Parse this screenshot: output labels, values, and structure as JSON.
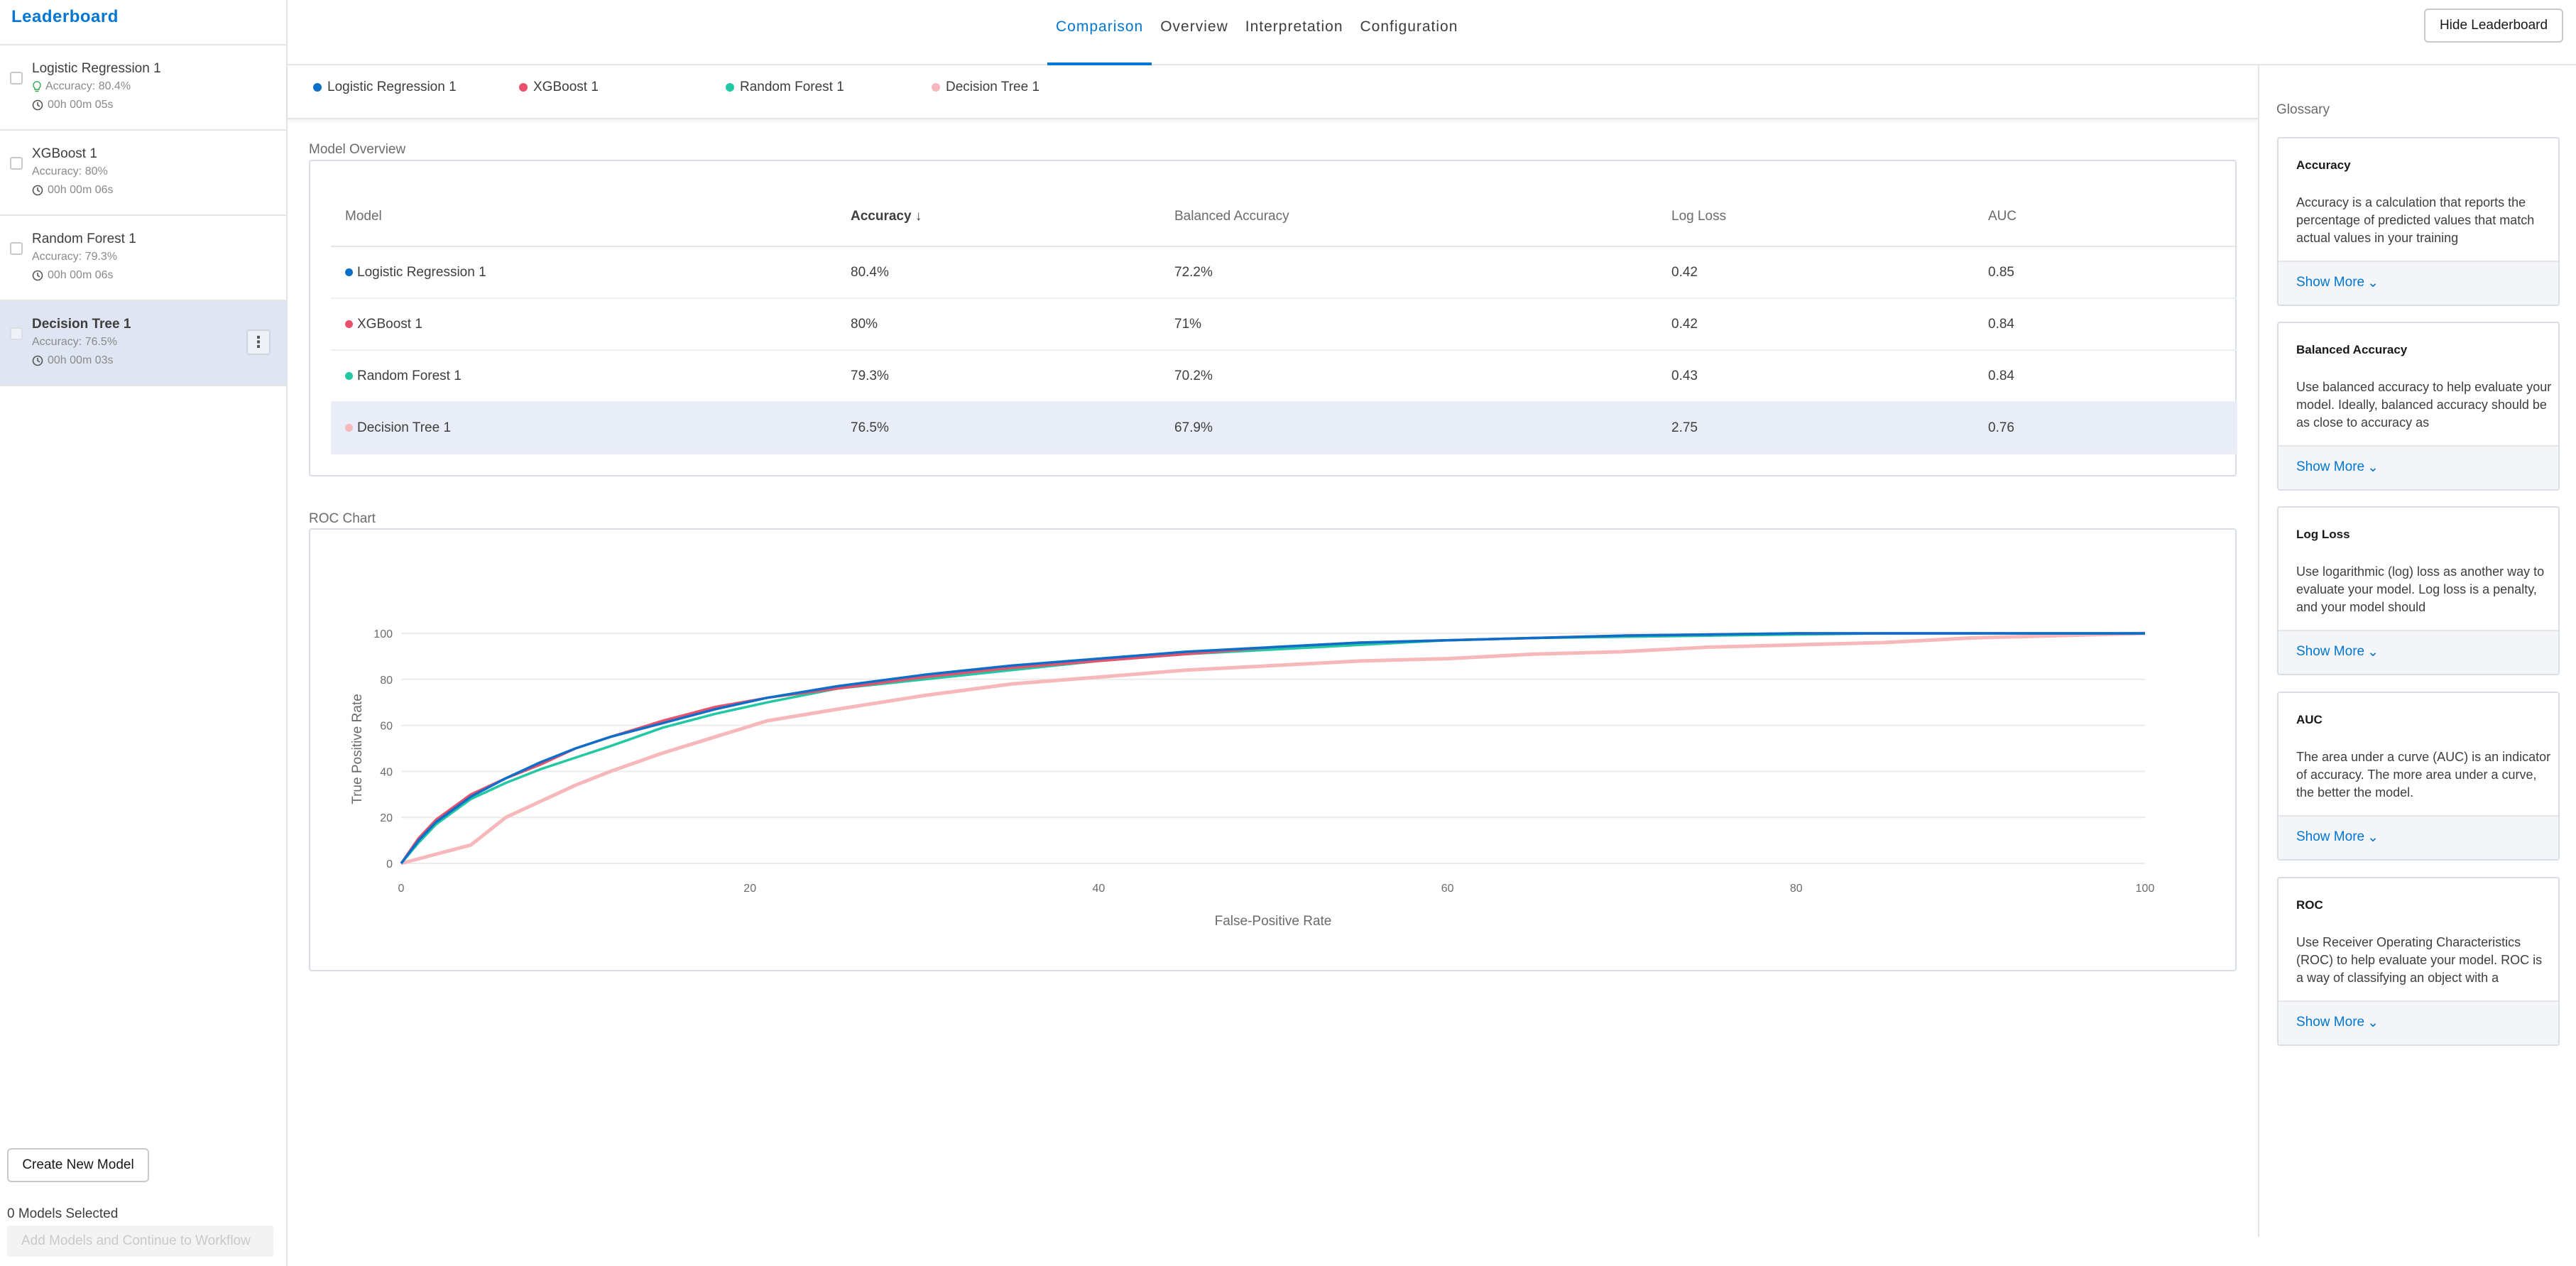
{
  "sidebar": {
    "title": "Leaderboard",
    "models": [
      {
        "name": "Logistic Regression 1",
        "accuracy": "Accuracy: 80.4%",
        "time": "00h 00m 05s",
        "badge": true
      },
      {
        "name": "XGBoost 1",
        "accuracy": "Accuracy: 80%",
        "time": "00h 00m 06s"
      },
      {
        "name": "Random Forest 1",
        "accuracy": "Accuracy: 79.3%",
        "time": "00h 00m 06s"
      },
      {
        "name": "Decision Tree 1",
        "accuracy": "Accuracy: 76.5%",
        "time": "00h 00m 03s",
        "selected": true
      }
    ],
    "create_button": "Create New Model",
    "models_selected": "0 Models Selected",
    "add_button": "Add Models and Continue to Workflow"
  },
  "nav": {
    "tabs": [
      "Comparison",
      "Overview",
      "Interpretation",
      "Configuration"
    ],
    "active_tab": "Comparison",
    "hide_button": "Hide Leaderboard"
  },
  "legend": [
    {
      "name": "Logistic Regression 1",
      "color": "#0b6fc9"
    },
    {
      "name": "XGBoost 1",
      "color": "#e8506b"
    },
    {
      "name": "Random Forest 1",
      "color": "#22c7a4"
    },
    {
      "name": "Decision Tree 1",
      "color": "#f7b8bc"
    }
  ],
  "overview": {
    "title": "Model Overview",
    "columns": [
      "Model",
      "Accuracy",
      "Balanced Accuracy",
      "Log Loss",
      "AUC"
    ],
    "sorted_column": "Accuracy",
    "rows": [
      {
        "model": "Logistic Regression 1",
        "accuracy": "80.4%",
        "balanced": "72.2%",
        "logloss": "0.42",
        "auc": "0.85"
      },
      {
        "model": "XGBoost 1",
        "accuracy": "80%",
        "balanced": "71%",
        "logloss": "0.42",
        "auc": "0.84"
      },
      {
        "model": "Random Forest 1",
        "accuracy": "79.3%",
        "balanced": "70.2%",
        "logloss": "0.43",
        "auc": "0.84"
      },
      {
        "model": "Decision Tree 1",
        "accuracy": "76.5%",
        "balanced": "67.9%",
        "logloss": "2.75",
        "auc": "0.76",
        "highlighted": true
      }
    ]
  },
  "roc_title": "ROC Chart",
  "chart_data": {
    "type": "line",
    "xlabel": "False-Positive Rate",
    "ylabel": "True Positive Rate",
    "xlim": [
      0,
      100
    ],
    "ylim": [
      0,
      100
    ],
    "xticks": [
      0,
      20,
      40,
      60,
      80,
      100
    ],
    "yticks": [
      0,
      20,
      40,
      60,
      80,
      100
    ],
    "grid": true,
    "x": [
      0,
      1,
      2,
      4,
      6,
      8,
      10,
      12,
      15,
      18,
      21,
      25,
      30,
      35,
      40,
      45,
      50,
      55,
      60,
      65,
      70,
      75,
      80,
      85,
      90,
      95,
      100
    ],
    "series": [
      {
        "name": "Logistic Regression 1",
        "color": "#0b6fc9",
        "values": [
          0,
          10,
          18,
          29,
          37,
          44,
          50,
          55,
          61,
          67,
          72,
          77,
          82,
          86,
          89,
          92,
          94,
          96,
          97,
          98,
          99,
          99.5,
          100,
          100,
          100,
          100,
          100
        ]
      },
      {
        "name": "XGBoost 1",
        "color": "#e8506b",
        "values": [
          0,
          11,
          19,
          30,
          37,
          43,
          50,
          55,
          62,
          68,
          72,
          76,
          81,
          85,
          88,
          91,
          94,
          96,
          97,
          98,
          99,
          99.5,
          100,
          100,
          100,
          100,
          100
        ]
      },
      {
        "name": "Random Forest 1",
        "color": "#22c7a4",
        "values": [
          0,
          9,
          17,
          28,
          35,
          41,
          46,
          51,
          59,
          65,
          70,
          76,
          80,
          84,
          88,
          91,
          93,
          95,
          97,
          98,
          98.5,
          99,
          99.5,
          100,
          100,
          100,
          100
        ]
      },
      {
        "name": "Decision Tree 1",
        "color": "#f7b8bc",
        "values": [
          0,
          2,
          4,
          8,
          20,
          27,
          34,
          40,
          48,
          55,
          62,
          67,
          73,
          78,
          81,
          84,
          86,
          88,
          89,
          91,
          92,
          94,
          95,
          96,
          98,
          99,
          100
        ]
      }
    ]
  },
  "glossary": {
    "title": "Glossary",
    "show_more": "Show More",
    "items": [
      {
        "term": "Accuracy",
        "text": "Accuracy is a calculation that reports the percentage of predicted values that match actual values in your training"
      },
      {
        "term": "Balanced Accuracy",
        "text": "Use balanced accuracy to help evaluate your model. Ideally, balanced accuracy should be as close to accuracy as"
      },
      {
        "term": "Log Loss",
        "text": "Use logarithmic (log) loss as another way to evaluate your model. Log loss is a penalty, and your model should"
      },
      {
        "term": "AUC",
        "text": "The area under a curve (AUC) is an indicator of accuracy. The more area under a curve, the better the model."
      },
      {
        "term": "ROC",
        "text": "Use Receiver Operating Characteristics (ROC) to help evaluate your model. ROC is a way of classifying an object with a"
      }
    ]
  }
}
